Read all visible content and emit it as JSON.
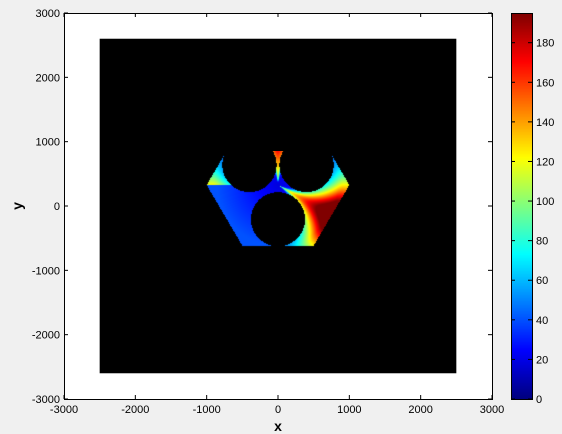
{
  "chart_data": {
    "type": "heatmap",
    "title": "",
    "xlabel": "x",
    "ylabel": "y",
    "xlim": [
      -3000,
      3000
    ],
    "ylim": [
      -3000,
      3000
    ],
    "xticks": [
      "-3000",
      "-2000",
      "-1000",
      "0",
      "1000",
      "2000",
      "3000"
    ],
    "yticks": [
      "-3000",
      "-2000",
      "-1000",
      "0",
      "1000",
      "2000",
      "3000"
    ],
    "background_region": {
      "x": [
        -2500,
        2500
      ],
      "y": [
        -2600,
        2600
      ],
      "color": "#000000"
    },
    "hexagon": {
      "vertices": [
        [
          -1000,
          0
        ],
        [
          -500,
          850
        ],
        [
          500,
          850
        ],
        [
          1000,
          0
        ],
        [
          500,
          -850
        ],
        [
          -500,
          -850
        ]
      ],
      "hole_centers": [
        [
          -400,
          280
        ],
        [
          400,
          280
        ],
        [
          0,
          -480
        ]
      ],
      "hole_radius": 380,
      "peak_value": 195,
      "peak_directions_deg": [
        90,
        210,
        330
      ]
    },
    "colorbar": {
      "colormap": "jet",
      "min": 0,
      "max": 195,
      "ticks": [
        "0",
        "20",
        "40",
        "60",
        "80",
        "100",
        "120",
        "140",
        "160",
        "180"
      ]
    },
    "grid": false
  }
}
